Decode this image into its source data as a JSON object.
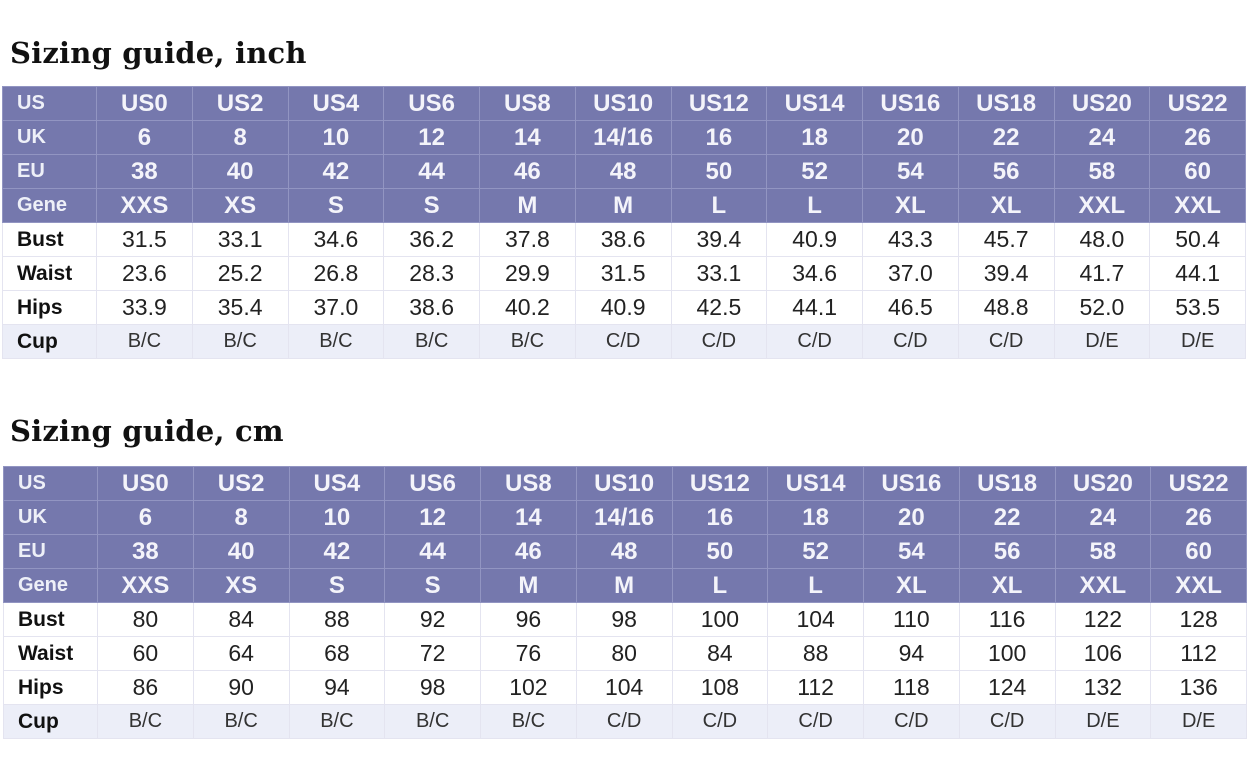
{
  "inch": {
    "title": "Sizing guide, inch",
    "rows": [
      {
        "label": "US",
        "kind": "hdr",
        "cells": [
          "US0",
          "US2",
          "US4",
          "US6",
          "US8",
          "US10",
          "US12",
          "US14",
          "US16",
          "US18",
          "US20",
          "US22"
        ]
      },
      {
        "label": "UK",
        "kind": "hdr",
        "cells": [
          "6",
          "8",
          "10",
          "12",
          "14",
          "14/16",
          "16",
          "18",
          "20",
          "22",
          "24",
          "26"
        ]
      },
      {
        "label": "EU",
        "kind": "hdr",
        "cells": [
          "38",
          "40",
          "42",
          "44",
          "46",
          "48",
          "50",
          "52",
          "54",
          "56",
          "58",
          "60"
        ]
      },
      {
        "label": "Gene",
        "kind": "hdr",
        "cells": [
          "XXS",
          "XS",
          "S",
          "S",
          "M",
          "M",
          "L",
          "L",
          "XL",
          "XL",
          "XXL",
          "XXL"
        ]
      },
      {
        "label": "Bust",
        "kind": "meas",
        "cells": [
          "31.5",
          "33.1",
          "34.6",
          "36.2",
          "37.8",
          "38.6",
          "39.4",
          "40.9",
          "43.3",
          "45.7",
          "48.0",
          "50.4"
        ]
      },
      {
        "label": "Waist",
        "kind": "meas",
        "cells": [
          "23.6",
          "25.2",
          "26.8",
          "28.3",
          "29.9",
          "31.5",
          "33.1",
          "34.6",
          "37.0",
          "39.4",
          "41.7",
          "44.1"
        ]
      },
      {
        "label": "Hips",
        "kind": "meas",
        "cells": [
          "33.9",
          "35.4",
          "37.0",
          "38.6",
          "40.2",
          "40.9",
          "42.5",
          "44.1",
          "46.5",
          "48.8",
          "52.0",
          "53.5"
        ]
      },
      {
        "label": "Cup",
        "kind": "cup",
        "cells": [
          "B/C",
          "B/C",
          "B/C",
          "B/C",
          "B/C",
          "C/D",
          "C/D",
          "C/D",
          "C/D",
          "C/D",
          "D/E",
          "D/E"
        ]
      }
    ]
  },
  "cm": {
    "title": "Sizing guide, cm",
    "rows": [
      {
        "label": "US",
        "kind": "hdr",
        "cells": [
          "US0",
          "US2",
          "US4",
          "US6",
          "US8",
          "US10",
          "US12",
          "US14",
          "US16",
          "US18",
          "US20",
          "US22"
        ]
      },
      {
        "label": "UK",
        "kind": "hdr",
        "cells": [
          "6",
          "8",
          "10",
          "12",
          "14",
          "14/16",
          "16",
          "18",
          "20",
          "22",
          "24",
          "26"
        ]
      },
      {
        "label": "EU",
        "kind": "hdr",
        "cells": [
          "38",
          "40",
          "42",
          "44",
          "46",
          "48",
          "50",
          "52",
          "54",
          "56",
          "58",
          "60"
        ]
      },
      {
        "label": "Gene",
        "kind": "hdr",
        "cells": [
          "XXS",
          "XS",
          "S",
          "S",
          "M",
          "M",
          "L",
          "L",
          "XL",
          "XL",
          "XXL",
          "XXL"
        ]
      },
      {
        "label": "Bust",
        "kind": "meas",
        "cells": [
          "80",
          "84",
          "88",
          "92",
          "96",
          "98",
          "100",
          "104",
          "110",
          "116",
          "122",
          "128"
        ]
      },
      {
        "label": "Waist",
        "kind": "meas",
        "cells": [
          "60",
          "64",
          "68",
          "72",
          "76",
          "80",
          "84",
          "88",
          "94",
          "100",
          "106",
          "112"
        ]
      },
      {
        "label": "Hips",
        "kind": "meas",
        "cells": [
          "86",
          "90",
          "94",
          "98",
          "102",
          "104",
          "108",
          "112",
          "118",
          "124",
          "132",
          "136"
        ]
      },
      {
        "label": "Cup",
        "kind": "cup",
        "cells": [
          "B/C",
          "B/C",
          "B/C",
          "B/C",
          "B/C",
          "C/D",
          "C/D",
          "C/D",
          "C/D",
          "C/D",
          "D/E",
          "D/E"
        ]
      }
    ]
  },
  "colors": {
    "header_bg": "#7578ad",
    "header_text": "#f4f4fa",
    "cup_bg": "#eceef8"
  }
}
